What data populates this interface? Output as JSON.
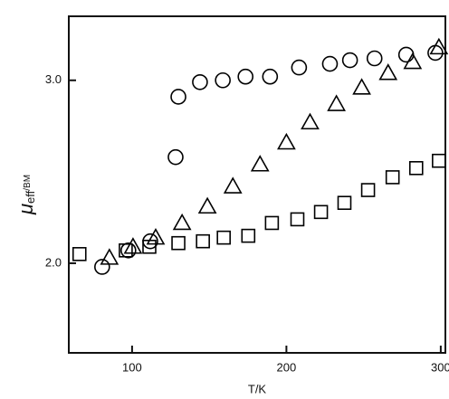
{
  "chart_data": {
    "type": "scatter",
    "xlabel": "T/K",
    "ylabel": {
      "symbol": "μ",
      "subscript": "eff",
      "unit": "/BM"
    },
    "xlim": [
      59,
      303
    ],
    "ylim": [
      1.51,
      3.35
    ],
    "xticks": [
      100,
      200,
      300
    ],
    "yticks": [
      {
        "value": 2,
        "label": "2.0"
      },
      {
        "value": 3,
        "label": "3.0"
      }
    ],
    "series": [
      {
        "marker": "circle",
        "color": "#000000",
        "x": [
          80.6,
          97.6,
          111.8,
          128.2,
          130,
          144,
          158.8,
          173.5,
          189.4,
          208.2,
          228.2,
          241.2,
          257.1,
          277.6,
          296.5
        ],
        "values": [
          1.98,
          2.07,
          2.12,
          2.58,
          2.91,
          2.99,
          3.0,
          3.02,
          3.02,
          3.07,
          3.09,
          3.11,
          3.12,
          3.14,
          3.15
        ]
      },
      {
        "marker": "triangle",
        "color": "#000000",
        "x": [
          85.3,
          100.6,
          115.3,
          132.4,
          148.8,
          165.3,
          182.9,
          200,
          215.3,
          232.4,
          248.8,
          265.9,
          281.8,
          298.8
        ],
        "values": [
          2.03,
          2.09,
          2.14,
          2.22,
          2.31,
          2.42,
          2.54,
          2.66,
          2.77,
          2.87,
          2.96,
          3.04,
          3.1,
          3.18
        ]
      },
      {
        "marker": "square",
        "color": "#000000",
        "x": [
          65.9,
          95.9,
          111.2,
          130,
          145.9,
          159.4,
          175.3,
          190.6,
          207.1,
          222.4,
          237.6,
          252.9,
          268.8,
          284.1,
          298.8
        ],
        "values": [
          2.05,
          2.07,
          2.09,
          2.11,
          2.12,
          2.14,
          2.15,
          2.22,
          2.24,
          2.28,
          2.33,
          2.4,
          2.47,
          2.52,
          2.56
        ]
      }
    ]
  }
}
